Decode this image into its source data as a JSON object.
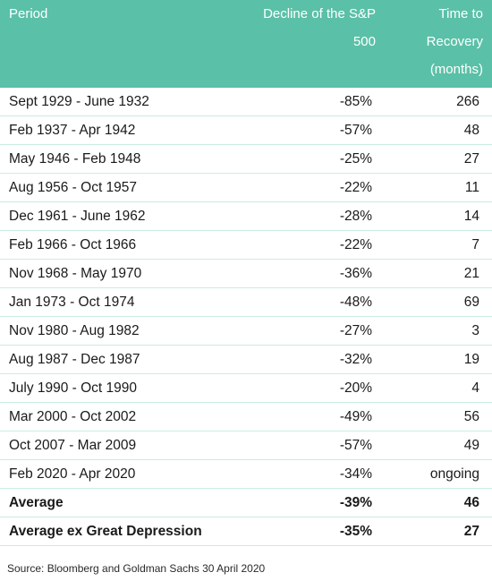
{
  "header": {
    "period": "Period",
    "decline_line1": "Decline of the S&P",
    "decline_line2": "500",
    "recovery_line1": "Time to",
    "recovery_line2": "Recovery",
    "recovery_line3": "(months)"
  },
  "rows": [
    {
      "period": "Sept 1929 - June 1932",
      "decline": "-85%",
      "recovery": "266"
    },
    {
      "period": "Feb 1937 - Apr 1942",
      "decline": "-57%",
      "recovery": "48"
    },
    {
      "period": "May 1946 - Feb 1948",
      "decline": "-25%",
      "recovery": "27"
    },
    {
      "period": "Aug 1956 - Oct 1957",
      "decline": "-22%",
      "recovery": "11"
    },
    {
      "period": "Dec 1961 - June 1962",
      "decline": "-28%",
      "recovery": "14"
    },
    {
      "period": "Feb 1966 - Oct 1966",
      "decline": "-22%",
      "recovery": "7"
    },
    {
      "period": "Nov 1968 - May 1970",
      "decline": "-36%",
      "recovery": "21"
    },
    {
      "period": "Jan 1973 - Oct 1974",
      "decline": "-48%",
      "recovery": "69"
    },
    {
      "period": "Nov 1980 - Aug 1982",
      "decline": "-27%",
      "recovery": "3"
    },
    {
      "period": "Aug 1987 - Dec 1987",
      "decline": "-32%",
      "recovery": "19"
    },
    {
      "period": "July 1990 - Oct 1990",
      "decline": "-20%",
      "recovery": "4"
    },
    {
      "period": "Mar 2000 - Oct 2002",
      "decline": "-49%",
      "recovery": "56"
    },
    {
      "period": "Oct 2007 - Mar 2009",
      "decline": "-57%",
      "recovery": "49"
    },
    {
      "period": "Feb 2020 - Apr 2020",
      "decline": "-34%",
      "recovery": "ongoing"
    }
  ],
  "summary": [
    {
      "period": "Average",
      "decline": "-39%",
      "recovery": "46"
    },
    {
      "period": "Average ex Great Depression",
      "decline": "-35%",
      "recovery": "27"
    }
  ],
  "source": "Source: Bloomberg and Goldman Sachs 30 April 2020",
  "colors": {
    "header_bg": "#5bc0a8",
    "header_text": "#ffffff",
    "row_divider": "#c9ece2"
  }
}
